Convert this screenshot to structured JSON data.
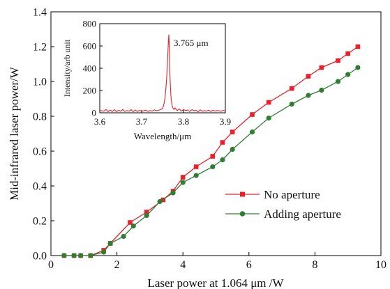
{
  "chart_data": [
    {
      "type": "line",
      "xlabel": "Laser power at 1.064 μm /W",
      "ylabel": "Mid-infrared laser power/W",
      "xlim": [
        0,
        10
      ],
      "ylim": [
        0,
        1.4
      ],
      "xticks": [
        0,
        2,
        4,
        6,
        8,
        10
      ],
      "yticks": [
        0.0,
        0.2,
        0.4,
        0.6,
        0.8,
        1.0,
        1.2,
        1.4
      ],
      "xtick_labels": [
        "0",
        "2",
        "4",
        "6",
        "8",
        "10"
      ],
      "ytick_labels": [
        "0.0",
        "0.2",
        "0.4",
        "0.6",
        "0.8",
        "1.0",
        "1.2",
        "1.4"
      ],
      "grid": false,
      "legend_position": "bottom-right",
      "series": [
        {
          "name": "No aperture",
          "color": "#e8202a",
          "marker": "square",
          "x": [
            0.4,
            0.7,
            0.9,
            1.2,
            1.6,
            1.8,
            2.4,
            2.9,
            3.4,
            3.7,
            4.0,
            4.4,
            4.9,
            5.2,
            5.5,
            6.1,
            6.6,
            7.3,
            7.8,
            8.2,
            8.7,
            9.0,
            9.3
          ],
          "y": [
            0.0,
            0.0,
            0.0,
            0.0,
            0.03,
            0.07,
            0.19,
            0.25,
            0.32,
            0.37,
            0.45,
            0.51,
            0.57,
            0.65,
            0.71,
            0.81,
            0.88,
            0.96,
            1.03,
            1.08,
            1.12,
            1.16,
            1.2
          ]
        },
        {
          "name": "Adding aperture",
          "color": "#2e7d32",
          "marker": "circle",
          "x": [
            0.4,
            0.7,
            0.9,
            1.2,
            1.6,
            1.8,
            2.2,
            2.5,
            2.9,
            3.3,
            3.7,
            4.0,
            4.4,
            4.9,
            5.2,
            5.5,
            6.1,
            6.6,
            7.3,
            7.8,
            8.2,
            8.7,
            9.0,
            9.3
          ],
          "y": [
            0.0,
            0.0,
            0.0,
            0.0,
            0.02,
            0.07,
            0.11,
            0.17,
            0.23,
            0.31,
            0.36,
            0.42,
            0.46,
            0.51,
            0.55,
            0.61,
            0.71,
            0.79,
            0.87,
            0.92,
            0.95,
            1.0,
            1.04,
            1.08
          ]
        }
      ]
    },
    {
      "type": "line",
      "xlabel": "Wavelength/μm",
      "ylabel": "Intensity/arb unit",
      "xlim": [
        3.6,
        3.9
      ],
      "ylim": [
        0,
        800
      ],
      "xticks": [
        3.6,
        3.7,
        3.8,
        3.9
      ],
      "yticks": [
        0,
        200,
        400,
        600,
        800
      ],
      "xtick_labels": [
        "3.6",
        "3.7",
        "3.8",
        "3.9"
      ],
      "ytick_labels": [
        "0",
        "200",
        "400",
        "600",
        "800"
      ],
      "grid": false,
      "annotation": "3.765 μm",
      "series": [
        {
          "color": "#e8202a",
          "x": [
            3.6,
            3.61,
            3.615,
            3.62,
            3.625,
            3.63,
            3.635,
            3.64,
            3.645,
            3.65,
            3.655,
            3.66,
            3.665,
            3.67,
            3.675,
            3.68,
            3.685,
            3.69,
            3.695,
            3.7,
            3.705,
            3.71,
            3.715,
            3.72,
            3.725,
            3.73,
            3.735,
            3.74,
            3.745,
            3.75,
            3.752,
            3.754,
            3.756,
            3.758,
            3.76,
            3.762,
            3.763,
            3.764,
            3.765,
            3.766,
            3.767,
            3.768,
            3.77,
            3.772,
            3.774,
            3.776,
            3.778,
            3.78,
            3.785,
            3.79,
            3.795,
            3.8,
            3.805,
            3.81,
            3.815,
            3.82,
            3.825,
            3.83,
            3.835,
            3.84,
            3.845,
            3.85,
            3.855,
            3.86,
            3.865,
            3.87,
            3.875,
            3.88,
            3.885,
            3.89,
            3.895,
            3.9
          ],
          "y": [
            20,
            15,
            30,
            10,
            25,
            12,
            28,
            10,
            22,
            14,
            30,
            12,
            20,
            15,
            28,
            10,
            25,
            12,
            22,
            14,
            18,
            24,
            12,
            20,
            15,
            26,
            18,
            22,
            28,
            40,
            60,
            90,
            140,
            220,
            320,
            480,
            560,
            650,
            700,
            600,
            450,
            300,
            150,
            80,
            50,
            35,
            30,
            45,
            20,
            35,
            15,
            30,
            20,
            25,
            12,
            28,
            18,
            22,
            10,
            26,
            14,
            20,
            15,
            24,
            12,
            22,
            16,
            20,
            18,
            14,
            22,
            15
          ]
        }
      ]
    }
  ]
}
